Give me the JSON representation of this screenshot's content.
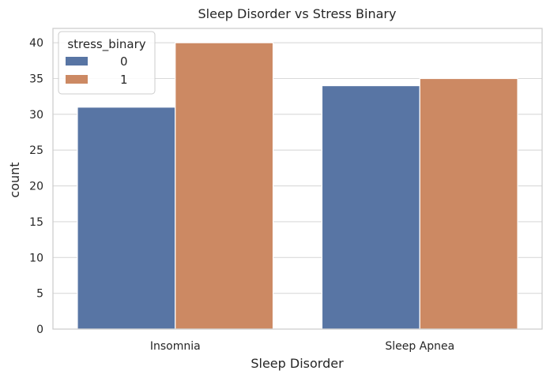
{
  "chart_data": {
    "type": "bar",
    "title": "Sleep Disorder vs Stress Binary",
    "xlabel": "Sleep Disorder",
    "ylabel": "count",
    "categories": [
      "Insomnia",
      "Sleep Apnea"
    ],
    "series": [
      {
        "name": "0",
        "values": [
          31,
          34
        ],
        "color": "#5875a4"
      },
      {
        "name": "1",
        "values": [
          40,
          35
        ],
        "color": "#cc8963"
      }
    ],
    "ylim": [
      0,
      42
    ],
    "yticks": [
      0,
      5,
      10,
      15,
      20,
      25,
      30,
      35,
      40
    ],
    "grid": true,
    "legend": {
      "title": "stress_binary",
      "position": "top-left"
    }
  }
}
